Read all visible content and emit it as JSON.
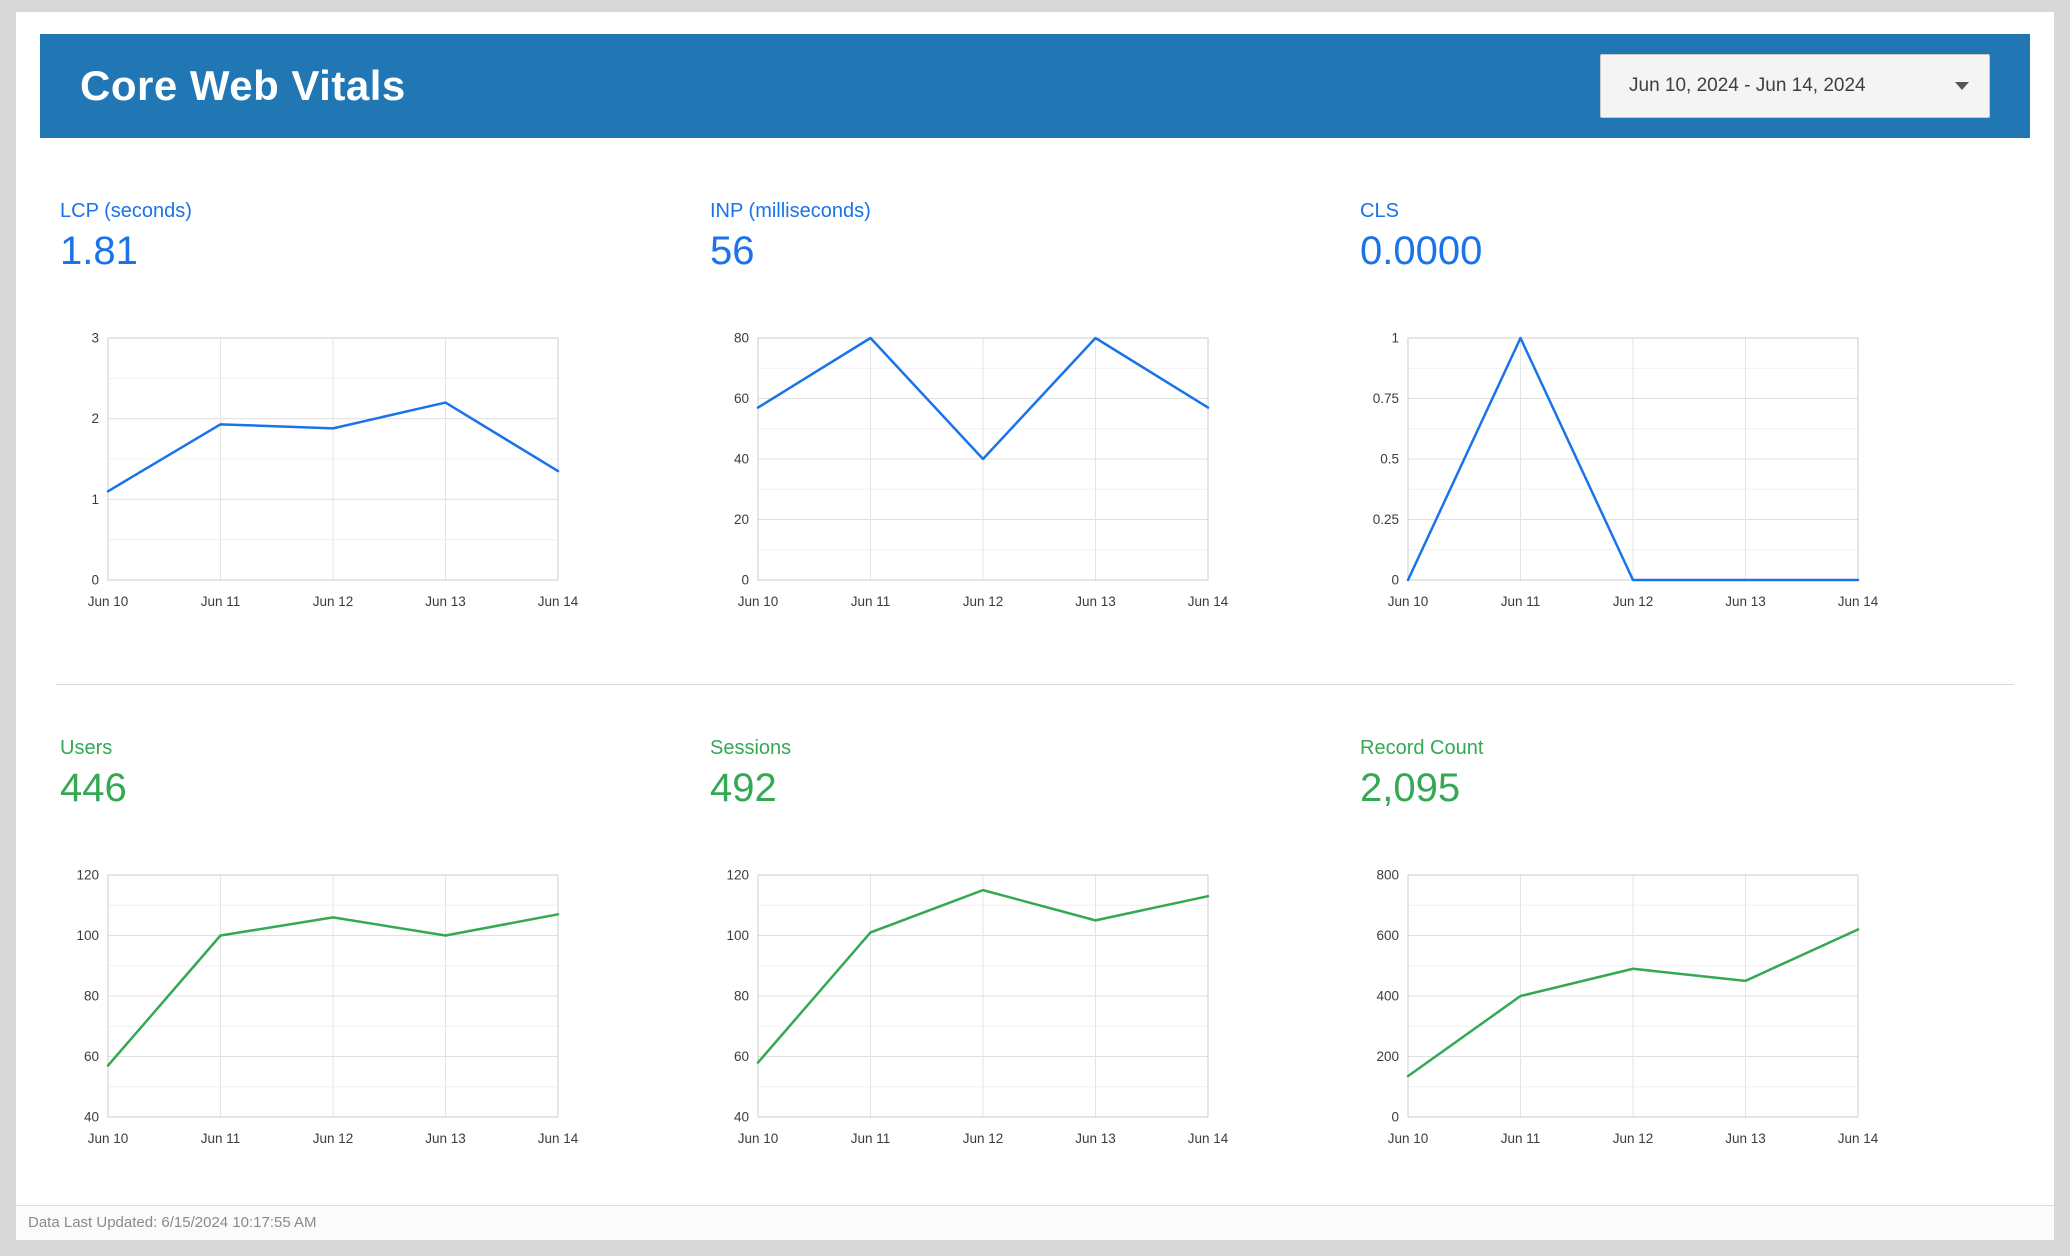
{
  "header": {
    "title": "Core Web Vitals",
    "date_range": "Jun 10, 2024 - Jun 14, 2024"
  },
  "footer": {
    "last_updated": "Data Last Updated: 6/15/2024 10:17:55 AM"
  },
  "colors": {
    "header_bg": "#2077b4",
    "metric_blue": "#1a73e8",
    "metric_green": "#34a853"
  },
  "chart_data": [
    {
      "type": "line",
      "title": "LCP (seconds)",
      "value": "1.81",
      "color": "#1a73e8",
      "categories": [
        "Jun 10",
        "Jun 11",
        "Jun 12",
        "Jun 13",
        "Jun 14"
      ],
      "values": [
        1.1,
        1.93,
        1.88,
        2.2,
        1.35
      ],
      "ylim": [
        0,
        3
      ],
      "yticks": [
        0,
        1,
        2,
        3
      ],
      "grid": true,
      "legend": "none"
    },
    {
      "type": "line",
      "title": "INP (milliseconds)",
      "value": "56",
      "color": "#1a73e8",
      "categories": [
        "Jun 10",
        "Jun 11",
        "Jun 12",
        "Jun 13",
        "Jun 14"
      ],
      "values": [
        57,
        80,
        40,
        80,
        57
      ],
      "ylim": [
        0,
        80
      ],
      "yticks": [
        0,
        20,
        40,
        60,
        80
      ],
      "grid": true,
      "legend": "none"
    },
    {
      "type": "line",
      "title": "CLS",
      "value": "0.0000",
      "color": "#1a73e8",
      "categories": [
        "Jun 10",
        "Jun 11",
        "Jun 12",
        "Jun 13",
        "Jun 14"
      ],
      "values": [
        0,
        1,
        0,
        0,
        0
      ],
      "ylim": [
        0,
        1
      ],
      "yticks": [
        0,
        0.25,
        0.5,
        0.75,
        1
      ],
      "grid": true,
      "legend": "none"
    },
    {
      "type": "line",
      "title": "Users",
      "value": "446",
      "color": "#34a853",
      "categories": [
        "Jun 10",
        "Jun 11",
        "Jun 12",
        "Jun 13",
        "Jun 14"
      ],
      "values": [
        57,
        100,
        106,
        100,
        107
      ],
      "ylim": [
        40,
        120
      ],
      "yticks": [
        40,
        60,
        80,
        100,
        120
      ],
      "grid": true,
      "legend": "none"
    },
    {
      "type": "line",
      "title": "Sessions",
      "value": "492",
      "color": "#34a853",
      "categories": [
        "Jun 10",
        "Jun 11",
        "Jun 12",
        "Jun 13",
        "Jun 14"
      ],
      "values": [
        58,
        101,
        115,
        105,
        113
      ],
      "ylim": [
        40,
        120
      ],
      "yticks": [
        40,
        60,
        80,
        100,
        120
      ],
      "grid": true,
      "legend": "none"
    },
    {
      "type": "line",
      "title": "Record Count",
      "value": "2,095",
      "color": "#34a853",
      "categories": [
        "Jun 10",
        "Jun 11",
        "Jun 12",
        "Jun 13",
        "Jun 14"
      ],
      "values": [
        135,
        400,
        490,
        450,
        620
      ],
      "ylim": [
        0,
        800
      ],
      "yticks": [
        0,
        200,
        400,
        600,
        800
      ],
      "grid": true,
      "legend": "none"
    }
  ]
}
